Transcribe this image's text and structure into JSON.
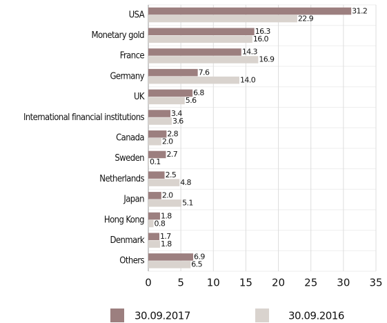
{
  "chart_data": {
    "type": "hbar",
    "categories": [
      "USA",
      "Monetary gold",
      "France",
      "Germany",
      "UK",
      "International financial institutions",
      "Canada",
      "Sweden",
      "Netherlands",
      "Japan",
      "Hong Kong",
      "Denmark",
      "Others"
    ],
    "series": [
      {
        "name": "30.09.2017",
        "color": "#9c7f7f",
        "values": [
          31.2,
          16.3,
          14.3,
          7.6,
          6.8,
          3.4,
          2.8,
          2.7,
          2.5,
          2.0,
          1.8,
          1.7,
          6.9
        ],
        "value_labels": [
          "31.2",
          "16.3",
          "14.3",
          "7.6",
          "6.8",
          "3.4",
          "2.8",
          "2.7",
          "2.5",
          "2.0",
          "1.8",
          "1.7",
          "6.9"
        ]
      },
      {
        "name": "30.09.2016",
        "color": "#d9d3ce",
        "values": [
          22.9,
          16.0,
          16.9,
          14.0,
          5.6,
          3.6,
          2.0,
          0.1,
          4.8,
          5.1,
          0.8,
          1.8,
          6.5
        ],
        "value_labels": [
          "22.9",
          "16.0",
          "16.9",
          "14.0",
          "5.6",
          "3.6",
          "2.0",
          "0.1",
          "4.8",
          "5.1",
          "0.8",
          "1.8",
          "6.5"
        ]
      }
    ],
    "xlim": [
      0,
      35
    ],
    "xticks": [
      0,
      5,
      10,
      15,
      20,
      25,
      30,
      35
    ],
    "grid": true,
    "legend": "bottom"
  }
}
